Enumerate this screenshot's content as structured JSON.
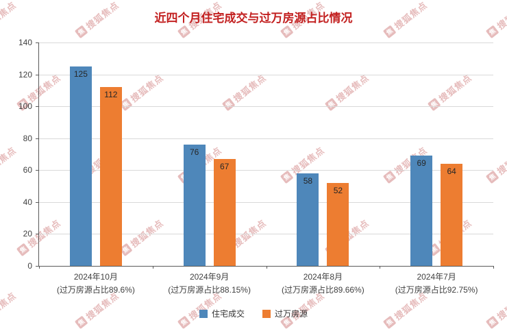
{
  "watermark": {
    "text": "搜狐焦点",
    "icon_char": "焦",
    "color": "#cf7b7b"
  },
  "chart_data": {
    "type": "bar",
    "title": "近四个月住宅成交与过万房源占比情况",
    "title_color": "#c21f1f",
    "categories": [
      {
        "label": "2024年10月",
        "sub": "(过万房源占比89.6%)"
      },
      {
        "label": "2024年9月",
        "sub": "(过万房源占比88.15%)"
      },
      {
        "label": "2024年8月",
        "sub": "(过万房源占比89.66%)"
      },
      {
        "label": "2024年7月",
        "sub": "(过万房源占比92.75%)"
      }
    ],
    "series": [
      {
        "name": "住宅成交",
        "color": "#4e87ba",
        "values": [
          125,
          76,
          58,
          69
        ]
      },
      {
        "name": "过万房源",
        "color": "#ed7d31",
        "values": [
          112,
          67,
          52,
          64
        ]
      }
    ],
    "ylim": [
      0,
      140
    ],
    "yticks": [
      0,
      20,
      40,
      60,
      80,
      100,
      120,
      140
    ],
    "grid": true,
    "legend_position": "bottom",
    "xlabel": "",
    "ylabel": ""
  }
}
